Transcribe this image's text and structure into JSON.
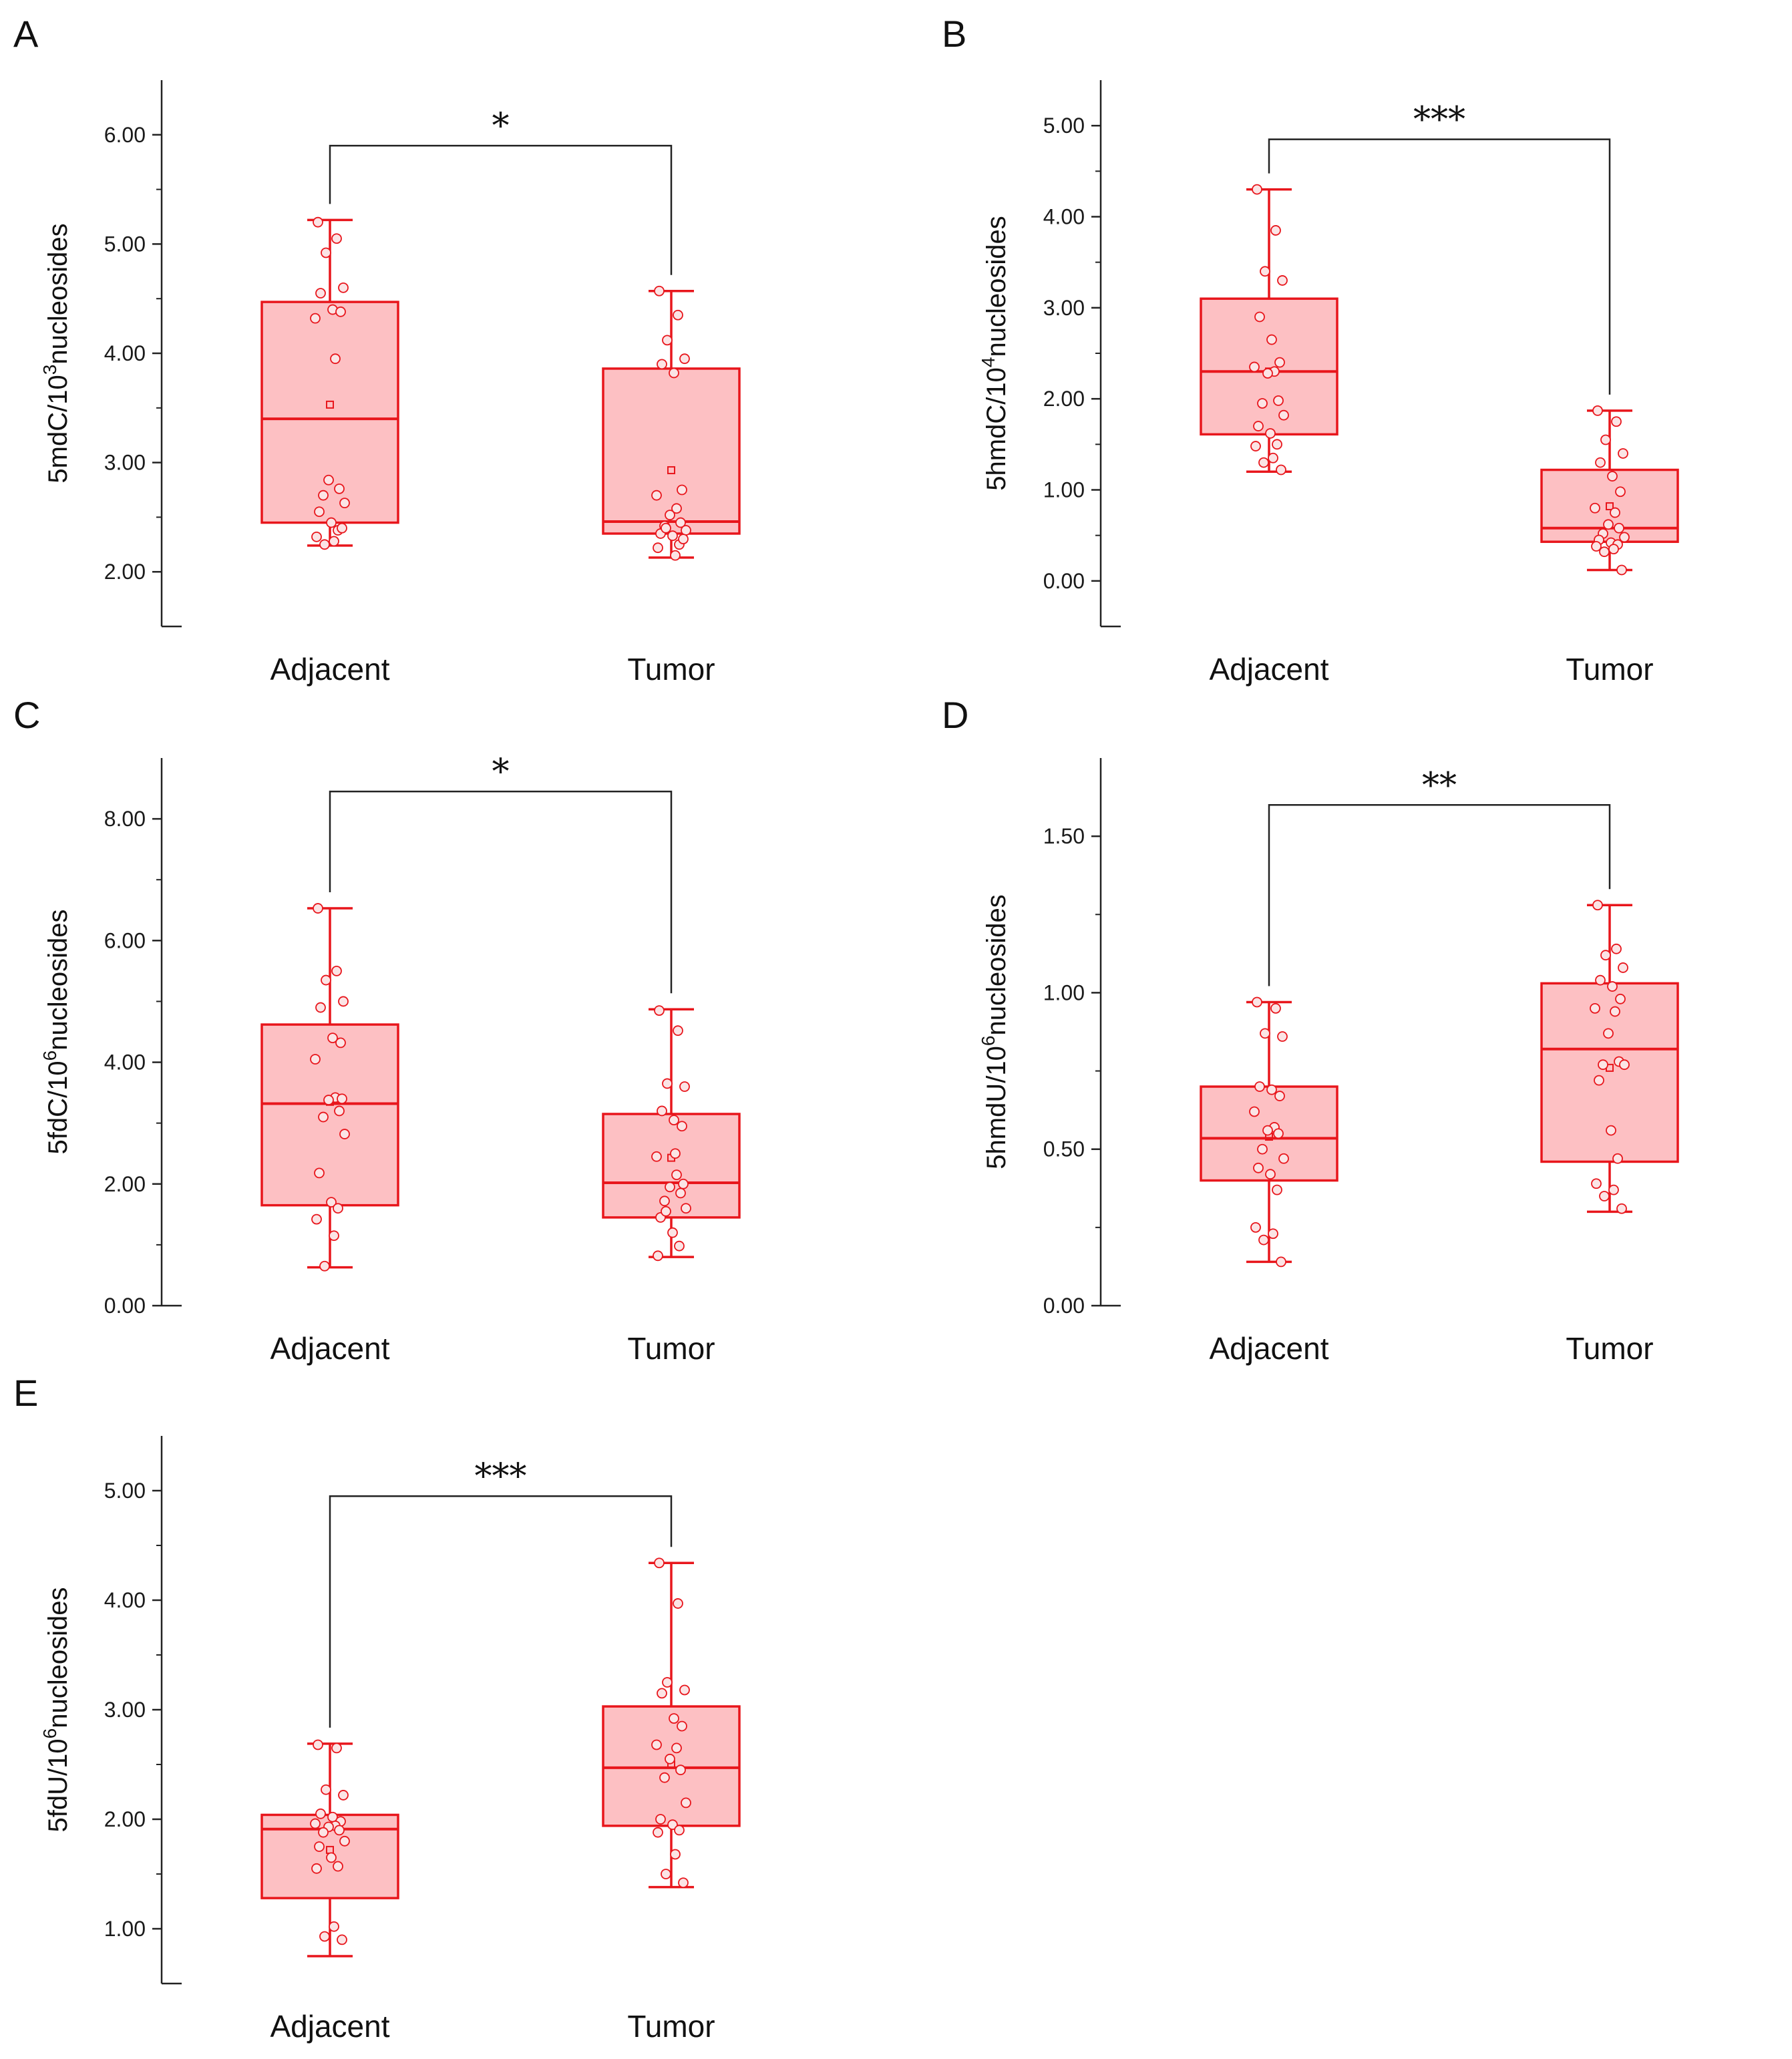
{
  "colors": {
    "accent": "#e8161c",
    "box_fill": "#fdc0c3",
    "point_fill": "#fbe4e5",
    "axis": "#222222"
  },
  "chart_data": [
    {
      "id": "A",
      "type": "box",
      "ylabel": "5mdC/10^3nucleosides",
      "ylabel_parts": {
        "pre": "5mdC/10",
        "sup": "3",
        "post": "nucleosides"
      },
      "categories": [
        "Adjacent",
        "Tumor"
      ],
      "ylim": [
        1.5,
        6.5
      ],
      "ticks": [
        2,
        3,
        4,
        5,
        6
      ],
      "tick_labels": [
        "2.00",
        "3.00",
        "4.00",
        "5.00",
        "6.00"
      ],
      "significance": "*",
      "bracket_y": 5.9,
      "groups": [
        {
          "name": "Adjacent",
          "min": 2.24,
          "q1": 2.45,
          "median": 3.4,
          "q3": 4.47,
          "max": 5.22,
          "mean": 3.53,
          "points": [
            5.2,
            5.05,
            4.92,
            4.6,
            4.55,
            4.4,
            4.38,
            4.32,
            3.95,
            2.84,
            2.76,
            2.7,
            2.63,
            2.55,
            2.45,
            2.38,
            2.32,
            2.28,
            2.25,
            2.4
          ]
        },
        {
          "name": "Tumor",
          "min": 2.13,
          "q1": 2.35,
          "median": 2.46,
          "q3": 3.86,
          "max": 4.57,
          "mean": 2.93,
          "points": [
            4.57,
            4.35,
            4.12,
            3.95,
            3.9,
            3.82,
            2.75,
            2.7,
            2.58,
            2.52,
            2.45,
            2.42,
            2.38,
            2.35,
            2.33,
            2.25,
            2.22,
            2.15,
            2.4,
            2.3
          ]
        }
      ]
    },
    {
      "id": "B",
      "type": "box",
      "ylabel": "5hmdC/10^4nucleosides",
      "ylabel_parts": {
        "pre": "5hmdC/10",
        "sup": "4",
        "post": "nucleosides"
      },
      "categories": [
        "Adjacent",
        "Tumor"
      ],
      "ylim": [
        -0.5,
        5.5
      ],
      "ticks": [
        0,
        1,
        2,
        3,
        4,
        5
      ],
      "tick_labels": [
        "0.00",
        "1.00",
        "2.00",
        "3.00",
        "4.00",
        "5.00"
      ],
      "significance": "***",
      "bracket_y": 4.85,
      "groups": [
        {
          "name": "Adjacent",
          "min": 1.2,
          "q1": 1.61,
          "median": 2.3,
          "q3": 3.1,
          "max": 4.3,
          "mean": 2.3,
          "points": [
            4.3,
            3.85,
            3.4,
            3.3,
            2.9,
            2.65,
            2.4,
            2.35,
            2.3,
            2.28,
            1.98,
            1.95,
            1.82,
            1.7,
            1.62,
            1.5,
            1.48,
            1.35,
            1.3,
            1.22
          ]
        },
        {
          "name": "Tumor",
          "min": 0.12,
          "q1": 0.43,
          "median": 0.58,
          "q3": 1.22,
          "max": 1.87,
          "mean": 0.82,
          "points": [
            1.87,
            1.75,
            1.55,
            1.4,
            1.3,
            1.15,
            0.98,
            0.8,
            0.75,
            0.62,
            0.58,
            0.52,
            0.48,
            0.45,
            0.42,
            0.4,
            0.38,
            0.35,
            0.32,
            0.12
          ]
        }
      ]
    },
    {
      "id": "C",
      "type": "box",
      "ylabel": "5fdC/10^6nucleosides",
      "ylabel_parts": {
        "pre": "5fdC/10",
        "sup": "6",
        "post": "nucleosides"
      },
      "categories": [
        "Adjacent",
        "Tumor"
      ],
      "ylim": [
        0,
        9
      ],
      "ticks": [
        0,
        2,
        4,
        6,
        8
      ],
      "tick_labels": [
        "0.00",
        "2.00",
        "4.00",
        "6.00",
        "8.00"
      ],
      "significance": "*",
      "bracket_y": 8.45,
      "groups": [
        {
          "name": "Adjacent",
          "min": 0.63,
          "q1": 1.65,
          "median": 3.32,
          "q3": 4.62,
          "max": 6.53,
          "mean": 3.35,
          "points": [
            6.53,
            5.5,
            5.35,
            5.0,
            4.9,
            4.4,
            4.32,
            4.05,
            3.42,
            3.38,
            3.2,
            3.1,
            2.82,
            2.18,
            1.7,
            1.6,
            1.42,
            1.15,
            0.65,
            3.4
          ]
        },
        {
          "name": "Tumor",
          "min": 0.8,
          "q1": 1.45,
          "median": 2.02,
          "q3": 3.15,
          "max": 4.87,
          "mean": 2.43,
          "points": [
            4.85,
            4.52,
            3.65,
            3.6,
            3.2,
            3.05,
            2.95,
            2.45,
            2.15,
            1.95,
            1.85,
            1.72,
            1.6,
            1.45,
            1.2,
            0.98,
            0.82,
            2.5,
            1.55,
            2.0
          ]
        }
      ]
    },
    {
      "id": "D",
      "type": "box",
      "ylabel": "5hmdU/10^6nucleosides",
      "ylabel_parts": {
        "pre": "5hmdU/10",
        "sup": "6",
        "post": "nucleosides"
      },
      "categories": [
        "Adjacent",
        "Tumor"
      ],
      "ylim": [
        0,
        1.75
      ],
      "ticks": [
        0,
        0.5,
        1.0,
        1.5
      ],
      "tick_labels": [
        "0.00",
        "0.50",
        "1.00",
        "1.50"
      ],
      "significance": "**",
      "bracket_y": 1.6,
      "groups": [
        {
          "name": "Adjacent",
          "min": 0.14,
          "q1": 0.4,
          "median": 0.535,
          "q3": 0.7,
          "max": 0.97,
          "mean": 0.54,
          "points": [
            0.97,
            0.95,
            0.87,
            0.86,
            0.7,
            0.69,
            0.67,
            0.62,
            0.57,
            0.56,
            0.55,
            0.5,
            0.47,
            0.44,
            0.42,
            0.37,
            0.25,
            0.23,
            0.21,
            0.14
          ]
        },
        {
          "name": "Tumor",
          "min": 0.3,
          "q1": 0.46,
          "median": 0.82,
          "q3": 1.03,
          "max": 1.28,
          "mean": 0.76,
          "points": [
            1.28,
            1.14,
            1.12,
            1.08,
            1.04,
            1.02,
            0.98,
            0.95,
            0.94,
            0.87,
            0.78,
            0.77,
            0.77,
            0.72,
            0.56,
            0.47,
            0.39,
            0.37,
            0.35,
            0.31
          ]
        }
      ]
    },
    {
      "id": "E",
      "type": "box",
      "ylabel": "5fdU/10^6nucleosides",
      "ylabel_parts": {
        "pre": "5fdU/10",
        "sup": "6",
        "post": "nucleosides"
      },
      "categories": [
        "Adjacent",
        "Tumor"
      ],
      "ylim": [
        0.5,
        5.5
      ],
      "ticks": [
        1,
        2,
        3,
        4,
        5
      ],
      "tick_labels": [
        "1.00",
        "2.00",
        "3.00",
        "4.00",
        "5.00"
      ],
      "significance": "***",
      "bracket_y": 4.95,
      "groups": [
        {
          "name": "Adjacent",
          "min": 0.75,
          "q1": 1.28,
          "median": 1.91,
          "q3": 2.04,
          "max": 2.69,
          "mean": 1.72,
          "points": [
            2.68,
            2.65,
            2.27,
            2.22,
            2.05,
            2.02,
            1.98,
            1.96,
            1.94,
            1.93,
            1.9,
            1.88,
            1.8,
            1.75,
            1.65,
            1.57,
            1.55,
            1.02,
            0.93,
            0.9
          ]
        },
        {
          "name": "Tumor",
          "min": 1.38,
          "q1": 1.94,
          "median": 2.47,
          "q3": 3.03,
          "max": 4.34,
          "mean": 2.5,
          "points": [
            4.34,
            3.97,
            3.25,
            3.18,
            3.15,
            2.92,
            2.85,
            2.68,
            2.65,
            2.55,
            2.45,
            2.38,
            2.15,
            2.0,
            1.95,
            1.9,
            1.88,
            1.68,
            1.5,
            1.42
          ]
        }
      ]
    }
  ]
}
